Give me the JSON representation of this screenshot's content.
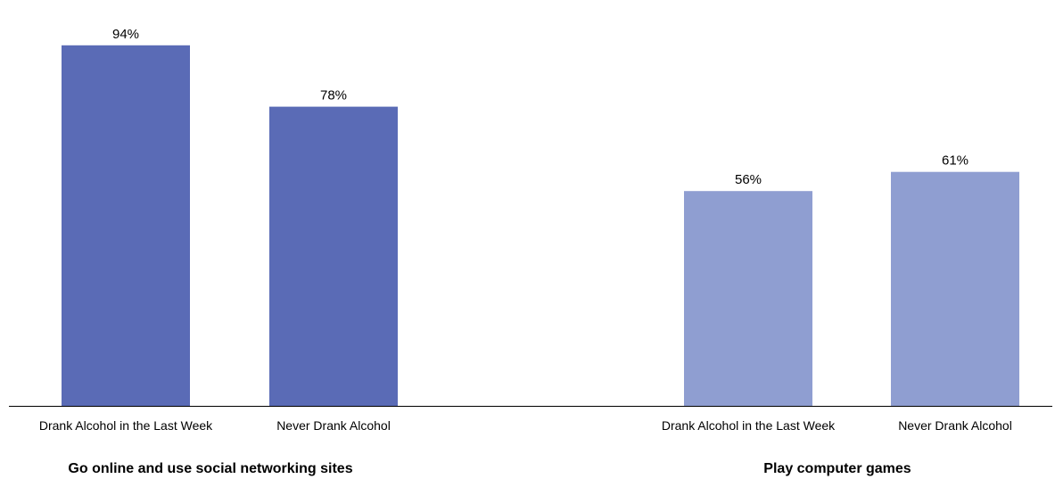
{
  "chart_data": {
    "type": "bar",
    "title": "",
    "xlabel": "",
    "ylabel": "",
    "ylim": [
      0,
      100
    ],
    "grid": false,
    "legend": "none",
    "groups": [
      {
        "name": "Go online and use social networking sites",
        "color": "#5a6bb6",
        "bars": [
          {
            "category": "Drank Alcohol in the Last Week",
            "value": 94,
            "label": "94%"
          },
          {
            "category": "Never Drank Alcohol",
            "value": 78,
            "label": "78%"
          }
        ]
      },
      {
        "name": "Play computer games",
        "color": "#8f9ed1",
        "bars": [
          {
            "category": "Drank Alcohol in the Last Week",
            "value": 56,
            "label": "56%"
          },
          {
            "category": "Never Drank Alcohol",
            "value": 61,
            "label": "61%"
          }
        ]
      }
    ]
  }
}
